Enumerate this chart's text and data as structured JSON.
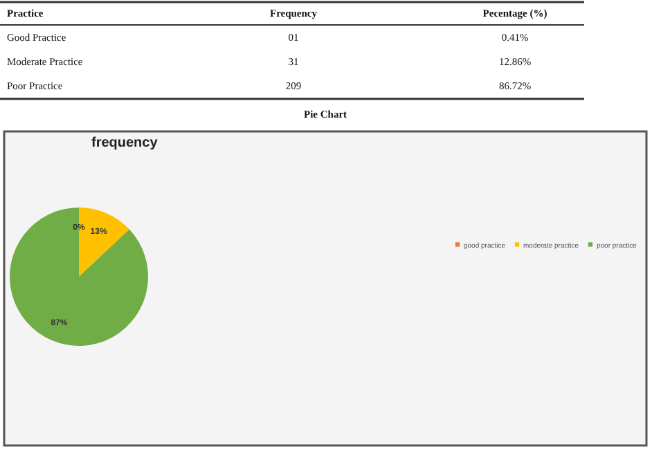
{
  "chart_data": {
    "type": "pie",
    "title": "frequency",
    "categories": [
      "good practice",
      "moderate practice",
      "poor practice"
    ],
    "values": [
      0,
      13,
      87
    ],
    "value_labels": [
      "0%",
      "13%",
      "87%"
    ],
    "colors": [
      "#ed7d31",
      "#ffc000",
      "#70ad47"
    ],
    "legend": "right",
    "annotations": [
      "Practice",
      "Frequency",
      "Pecentage (%)",
      "Good Practice",
      "01",
      "0.41%",
      "Moderate Practice",
      "31",
      "12.86%",
      "Poor Practice",
      "209",
      "86.72%",
      "Pie Chart"
    ]
  }
}
